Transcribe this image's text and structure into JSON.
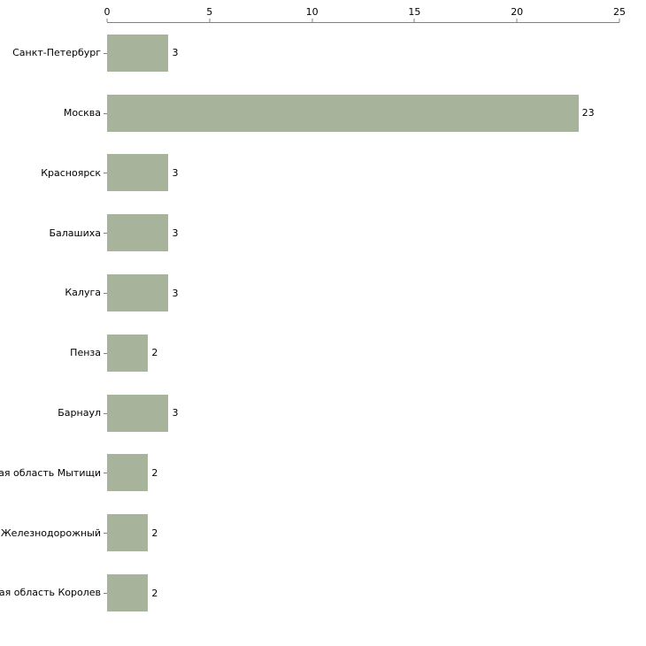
{
  "chart_data": {
    "type": "bar",
    "orientation": "horizontal",
    "title": "",
    "xlabel": "",
    "ylabel": "",
    "categories": [
      "Санкт-Петербург",
      "Москва",
      "Красноярск",
      "Балашиха",
      "Калуга",
      "Пенза",
      "Барнаул",
      "кая область Мытищи",
      "ъ Железнодорожный",
      "кая область Королев"
    ],
    "values": [
      3,
      23,
      3,
      3,
      3,
      2,
      3,
      2,
      2,
      2
    ],
    "xlim": [
      0,
      25
    ],
    "x_ticks": [
      0,
      5,
      10,
      15,
      20,
      25
    ],
    "x_axis_position": "top",
    "grid": false,
    "legend": false,
    "value_labels": true,
    "bar_color": "#a8b39b",
    "axis_color": "#808080",
    "text_color": "#000000",
    "background_color": "#ffffff"
  }
}
